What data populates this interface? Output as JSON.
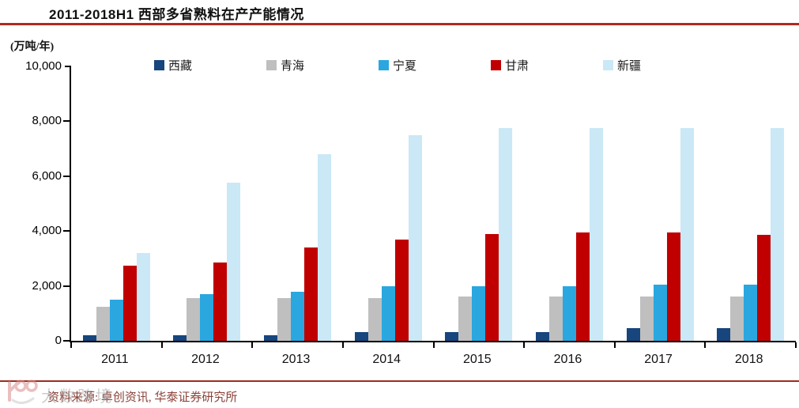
{
  "title": "2011-2018H1 西部多省熟料在产产能情况",
  "y_unit_label": "(万吨/年)",
  "source_note": "资料来源: 卓创资讯, 华泰证券研究所",
  "watermark": "大数跨境",
  "colors": {
    "title_rule": "#AF2B1E",
    "bottom_rule": "#9E2B20",
    "source_text": "#8B4239",
    "axis": "#000000"
  },
  "chart_data": {
    "type": "bar",
    "title": "2011-2018H1 西部多省熟料在产产能情况",
    "xlabel": "",
    "ylabel": "(万吨/年)",
    "categories": [
      "2011",
      "2012",
      "2013",
      "2014",
      "2015",
      "2016",
      "2017",
      "2018"
    ],
    "series": [
      {
        "name": "西藏",
        "color": "#17457D",
        "values": [
          200,
          200,
          200,
          320,
          320,
          320,
          450,
          450
        ]
      },
      {
        "name": "青海",
        "color": "#BFBFBF",
        "values": [
          1250,
          1550,
          1550,
          1550,
          1600,
          1600,
          1600,
          1600
        ]
      },
      {
        "name": "宁夏",
        "color": "#2AA7DF",
        "values": [
          1500,
          1700,
          1800,
          2000,
          2000,
          2000,
          2050,
          2050
        ]
      },
      {
        "name": "甘肃",
        "color": "#C00000",
        "values": [
          2750,
          2850,
          3400,
          3700,
          3900,
          3950,
          3950,
          3850
        ]
      },
      {
        "name": "新疆",
        "color": "#CAE8F6",
        "values": [
          3200,
          5750,
          6800,
          7500,
          7750,
          7750,
          7750,
          7750
        ]
      }
    ],
    "ylim": [
      0,
      10000
    ],
    "ytick_labels": [
      "10,000",
      "8,000",
      "6,000",
      "4,000",
      "2,000",
      "0"
    ],
    "grid": false,
    "legend_position": "top"
  }
}
